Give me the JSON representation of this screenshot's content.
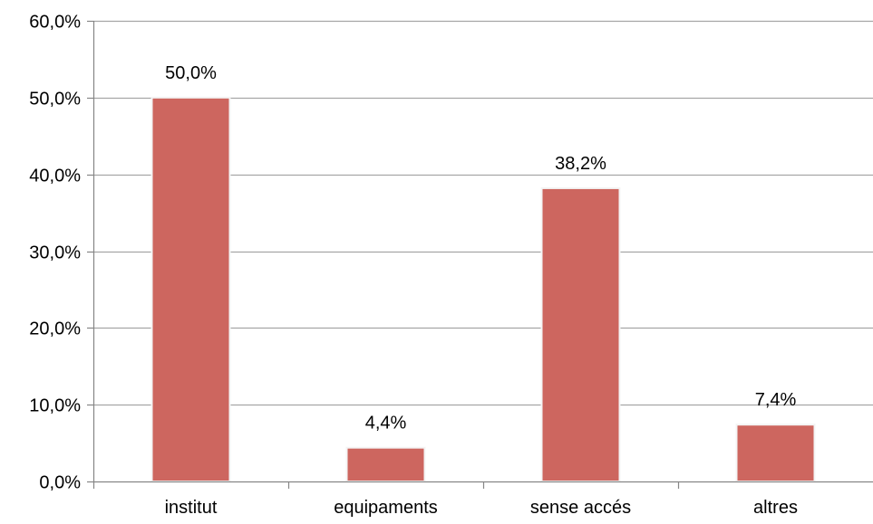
{
  "chart_data": {
    "type": "bar",
    "categories": [
      "institut",
      "equipaments",
      "sense accés",
      "altres"
    ],
    "values": [
      50.0,
      4.4,
      38.2,
      7.4
    ],
    "value_labels": [
      "50,0%",
      "4,4%",
      "38,2%",
      "7,4%"
    ],
    "yticks": [
      0,
      10,
      20,
      30,
      40,
      50,
      60
    ],
    "ytick_labels": [
      "0,0%",
      "10,0%",
      "20,0%",
      "30,0%",
      "40,0%",
      "50,0%",
      "60,0%"
    ],
    "ylim": [
      0,
      60
    ],
    "grid": true,
    "legend": "none",
    "bar_color": "#cd665f",
    "bar_edge_color": "#f4f4f4",
    "grid_color": "#a6a6a6",
    "axis_color": "#868686"
  }
}
